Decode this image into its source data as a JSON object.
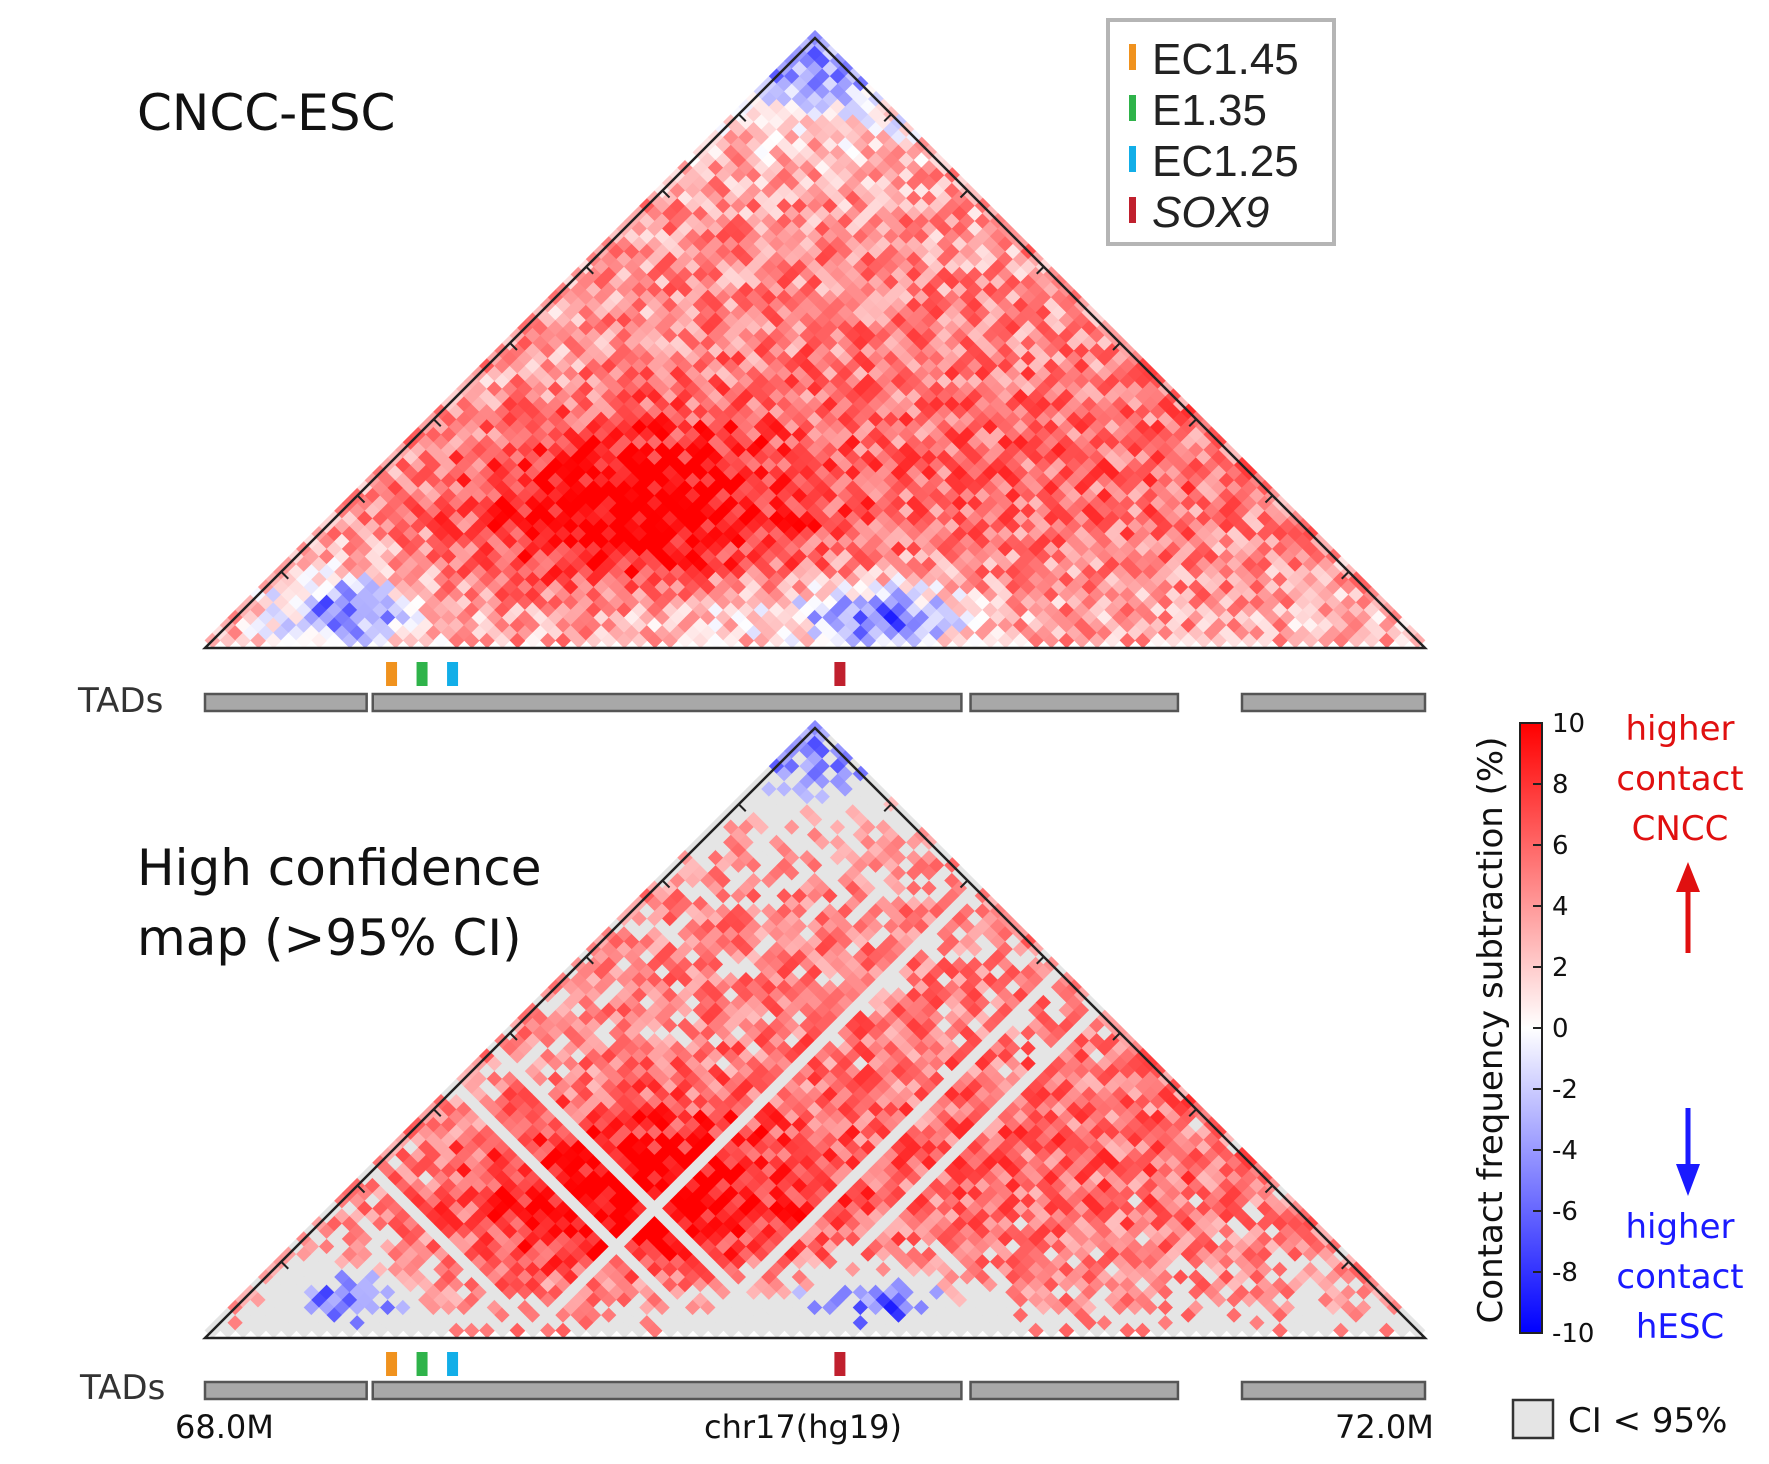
{
  "chart_data": {
    "type": "heatmap",
    "panels": [
      {
        "id": "top",
        "title": "CNCC-ESC",
        "ci_masked": false,
        "tads_label": "TADs"
      },
      {
        "id": "bottom",
        "title_line1": "High confidence",
        "title_line2": "map (>95% CI)",
        "ci_masked": true,
        "tads_label": "TADs"
      }
    ],
    "x_axis": {
      "start_label": "68.0M",
      "end_label": "72.0M",
      "xlabel": "chr17(hg19)",
      "range_mb": [
        68.0,
        72.0
      ]
    },
    "tads_mb": [
      [
        68.0,
        68.53
      ],
      [
        68.55,
        70.48
      ],
      [
        70.51,
        71.19
      ],
      [
        71.4,
        72.0
      ]
    ],
    "markers": [
      {
        "label": "EC1.45",
        "position_mb": 68.61,
        "color": "#f0921e"
      },
      {
        "label": "E1.35",
        "position_mb": 68.71,
        "color": "#2fb34a"
      },
      {
        "label": "EC1.25",
        "position_mb": 68.81,
        "color": "#12aee8"
      },
      {
        "label": "SOX9",
        "position_mb": 70.08,
        "color": "#c0202e"
      }
    ],
    "colorbar": {
      "label": "Contact frequency subtraction (%)",
      "range": [
        -10,
        10
      ],
      "ticks": [
        "10",
        "8",
        "6",
        "4",
        "2",
        "0",
        "-2",
        "-4",
        "-6",
        "-8",
        "-10"
      ],
      "high_color": "#ff0000",
      "mid_color": "#ffffff",
      "low_color": "#0000ff"
    },
    "annotations": {
      "red_text": [
        "higher",
        "contact",
        "CNCC"
      ],
      "blue_text": [
        "higher",
        "contact",
        "hESC"
      ],
      "ci_legend": "CI < 95%",
      "ci_color": "#e5e5e5"
    }
  }
}
